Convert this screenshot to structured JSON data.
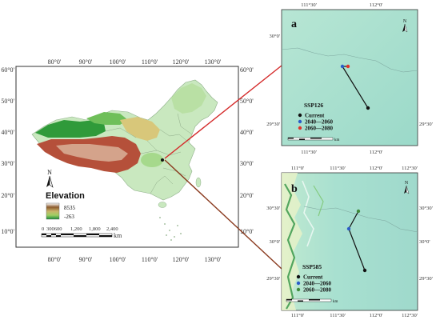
{
  "main_map": {
    "lon_ticks": [
      "80°0'",
      "90°0'",
      "100°0'",
      "110°0'",
      "120°0'",
      "130°0'"
    ],
    "lat_ticks": [
      "60°0'",
      "50°0'",
      "40°0'",
      "30°0'",
      "20°0'",
      "10°0'"
    ],
    "legend": {
      "title": "Elevation",
      "max": "8535",
      "min": "-263"
    },
    "scale": {
      "labels": [
        "0",
        "300600",
        "1,200",
        "1,800",
        "2,400"
      ],
      "unit": "km"
    },
    "north": "N"
  },
  "panel_a": {
    "letter": "a",
    "scenario": "SSP126",
    "legend": [
      "Current",
      "2040—2060",
      "2060—2080"
    ],
    "colors": [
      "#111111",
      "#2b5cc8",
      "#e0322b"
    ],
    "lon_ticks": [
      "111°30'",
      "112°0'"
    ],
    "lat_ticks": [
      "30°0'",
      "29°30'"
    ],
    "north": "N",
    "scale_unit": "km"
  },
  "panel_b": {
    "letter": "b",
    "scenario": "SSP585",
    "legend": [
      "Current",
      "2040—2060",
      "2060—2080"
    ],
    "colors": [
      "#111111",
      "#2b5cc8",
      "#3e8a3a"
    ],
    "lon_ticks": [
      "111°0'",
      "111°30'",
      "112°0'",
      "112°30'"
    ],
    "lat_ticks": [
      "30°30'",
      "30°0'",
      "29°30'"
    ],
    "north": "N",
    "scale_unit": "km"
  },
  "colors": {
    "connector_red": "#d42a2a",
    "connector_brown": "#8a3a1e",
    "panel_bg": "#a6e0cf"
  }
}
